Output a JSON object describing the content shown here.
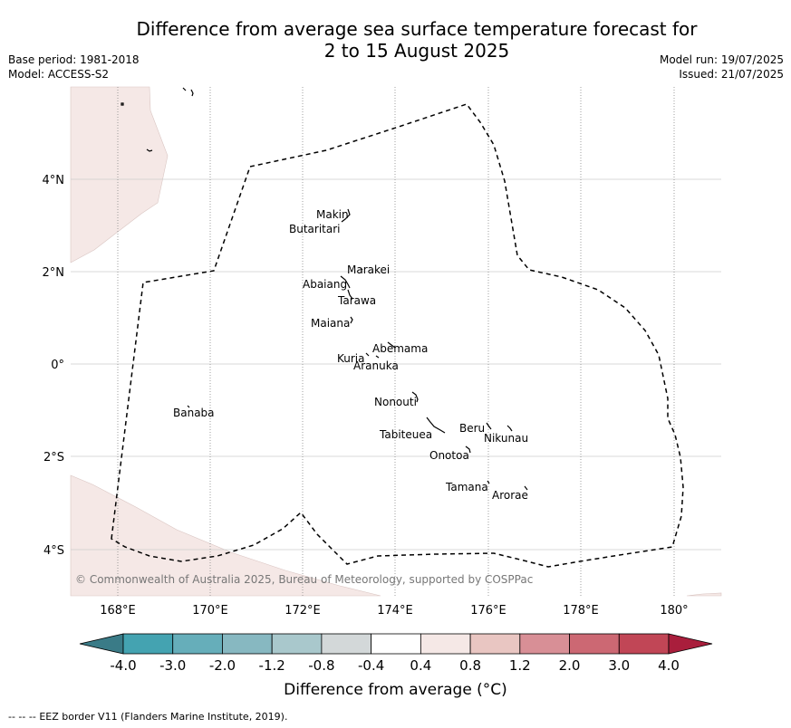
{
  "header": {
    "title_line1": "Difference from average sea surface temperature forecast for",
    "title_line2": "2 to 15 August 2025",
    "base_period": "Base period: 1981-2018",
    "model": "Model: ACCESS-S2",
    "model_run": "Model run: 19/07/2025",
    "issued": "Issued: 21/07/2025"
  },
  "map": {
    "lon_ticks": [
      "168°E",
      "170°E",
      "172°E",
      "174°E",
      "176°E",
      "178°E",
      "180°"
    ],
    "lat_ticks": [
      "4°N",
      "2°N",
      "0°",
      "2°S",
      "4°S"
    ],
    "copyright": "© Commonwealth of Australia 2025, Bureau of Meteorology, supported by COSPPac",
    "islands": [
      {
        "name": "Makin"
      },
      {
        "name": "Butaritari"
      },
      {
        "name": "Marakei"
      },
      {
        "name": "Abaiang"
      },
      {
        "name": "Tarawa"
      },
      {
        "name": "Maiana"
      },
      {
        "name": "Abemama"
      },
      {
        "name": "Kuria"
      },
      {
        "name": "Aranuka"
      },
      {
        "name": "Banaba"
      },
      {
        "name": "Nonouti"
      },
      {
        "name": "Beru"
      },
      {
        "name": "Tabiteuea"
      },
      {
        "name": "Nikunau"
      },
      {
        "name": "Onotoa"
      },
      {
        "name": "Tamana"
      },
      {
        "name": "Arorae"
      }
    ],
    "colors": {
      "anomaly_near_zero_positive": "#f5e8e6",
      "eez_border": "#000000",
      "grid": "#cccccc"
    }
  },
  "colorbar": {
    "tick_labels": [
      "-4.0",
      "-3.0",
      "-2.0",
      "-1.2",
      "-0.8",
      "-0.4",
      "0.4",
      "0.8",
      "1.2",
      "2.0",
      "3.0",
      "4.0"
    ],
    "colors": [
      "#3a7b87",
      "#44a3b1",
      "#66aeba",
      "#87b8c1",
      "#a9c8cc",
      "#d3d8d9",
      "#ffffff",
      "#f5e8e6",
      "#e9c6c2",
      "#d88f96",
      "#cc6873",
      "#c14656",
      "#a91e3c"
    ],
    "label": "Difference from average (°C)"
  },
  "footer": {
    "legend_symbol": "--  --  --",
    "eez_text": "EEZ border V11 (Flanders Marine Institute, 2019)."
  }
}
